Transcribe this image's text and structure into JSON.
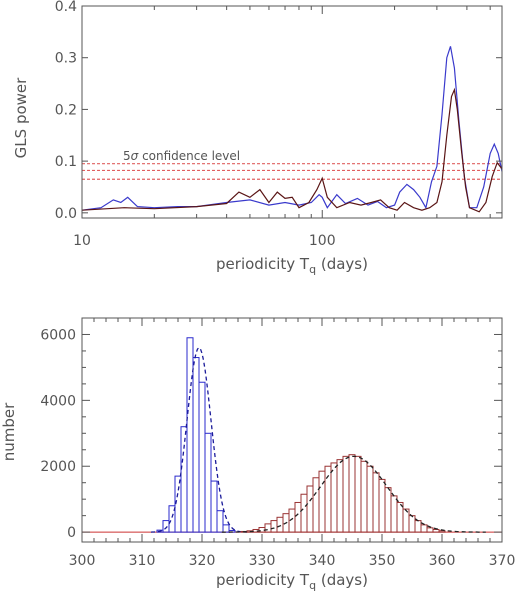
{
  "chart_data": [
    {
      "type": "line",
      "ylabel": "GLS power",
      "xlabel_prefix": "periodicity T",
      "xlabel_sub": "q",
      "xlabel_suffix": " (days)",
      "xscale": "log",
      "xlim": [
        10,
        560
      ],
      "ylim": [
        -0.01,
        0.4
      ],
      "x_ticks": [
        {
          "v": 10,
          "label": "10"
        },
        {
          "v": 100,
          "label": "100"
        }
      ],
      "y_ticks": [
        {
          "v": 0.0,
          "label": "0.0"
        },
        {
          "v": 0.1,
          "label": "0.1"
        },
        {
          "v": 0.2,
          "label": "0.2"
        },
        {
          "v": 0.3,
          "label": "0.3"
        },
        {
          "v": 0.4,
          "label": "0.4"
        }
      ],
      "annotation": {
        "prefix": "5",
        "symbol": "σ",
        "text": " confidence level",
        "color": "#e06060"
      },
      "confidence_levels": [
        0.065,
        0.082,
        0.095
      ],
      "series": [
        {
          "color": "#3a3acc",
          "points": [
            [
              10,
              0.005
            ],
            [
              12,
              0.01
            ],
            [
              13.5,
              0.025
            ],
            [
              14.5,
              0.02
            ],
            [
              15.5,
              0.03
            ],
            [
              17,
              0.012
            ],
            [
              20,
              0.01
            ],
            [
              25,
              0.012
            ],
            [
              30,
              0.012
            ],
            [
              40,
              0.02
            ],
            [
              50,
              0.025
            ],
            [
              60,
              0.015
            ],
            [
              70,
              0.02
            ],
            [
              80,
              0.015
            ],
            [
              90,
              0.02
            ],
            [
              97,
              0.035
            ],
            [
              100,
              0.03
            ],
            [
              105,
              0.01
            ],
            [
              115,
              0.035
            ],
            [
              125,
              0.018
            ],
            [
              140,
              0.028
            ],
            [
              155,
              0.015
            ],
            [
              170,
              0.022
            ],
            [
              185,
              0.01
            ],
            [
              200,
              0.015
            ],
            [
              210,
              0.04
            ],
            [
              225,
              0.055
            ],
            [
              240,
              0.045
            ],
            [
              255,
              0.03
            ],
            [
              270,
              0.01
            ],
            [
              285,
              0.06
            ],
            [
              300,
              0.09
            ],
            [
              315,
              0.19
            ],
            [
              330,
              0.3
            ],
            [
              342,
              0.322
            ],
            [
              355,
              0.28
            ],
            [
              370,
              0.18
            ],
            [
              390,
              0.07
            ],
            [
              410,
              0.01
            ],
            [
              440,
              0.01
            ],
            [
              470,
              0.05
            ],
            [
              500,
              0.115
            ],
            [
              520,
              0.133
            ],
            [
              540,
              0.115
            ],
            [
              560,
              0.08
            ]
          ]
        },
        {
          "color": "#5a1515",
          "points": [
            [
              10,
              0.005
            ],
            [
              15,
              0.01
            ],
            [
              20,
              0.008
            ],
            [
              30,
              0.012
            ],
            [
              40,
              0.018
            ],
            [
              45,
              0.04
            ],
            [
              50,
              0.03
            ],
            [
              55,
              0.045
            ],
            [
              60,
              0.02
            ],
            [
              65,
              0.04
            ],
            [
              70,
              0.028
            ],
            [
              75,
              0.03
            ],
            [
              80,
              0.01
            ],
            [
              88,
              0.02
            ],
            [
              95,
              0.045
            ],
            [
              100,
              0.067
            ],
            [
              105,
              0.03
            ],
            [
              115,
              0.01
            ],
            [
              130,
              0.02
            ],
            [
              145,
              0.015
            ],
            [
              160,
              0.02
            ],
            [
              175,
              0.025
            ],
            [
              190,
              0.01
            ],
            [
              205,
              0.005
            ],
            [
              220,
              0.02
            ],
            [
              240,
              0.01
            ],
            [
              260,
              0.005
            ],
            [
              280,
              0.01
            ],
            [
              300,
              0.02
            ],
            [
              315,
              0.06
            ],
            [
              330,
              0.15
            ],
            [
              345,
              0.225
            ],
            [
              355,
              0.238
            ],
            [
              365,
              0.2
            ],
            [
              380,
              0.12
            ],
            [
              395,
              0.05
            ],
            [
              410,
              0.01
            ],
            [
              450,
              0.002
            ],
            [
              480,
              0.02
            ],
            [
              510,
              0.07
            ],
            [
              535,
              0.097
            ],
            [
              560,
              0.085
            ]
          ]
        }
      ]
    },
    {
      "type": "bar",
      "ylabel": "number",
      "xlabel_prefix": "periodicity T",
      "xlabel_sub": "q",
      "xlabel_suffix": " (days)",
      "xlim": [
        300,
        370
      ],
      "ylim": [
        -300,
        6500
      ],
      "x_ticks": [
        {
          "v": 300,
          "label": "300"
        },
        {
          "v": 310,
          "label": "310"
        },
        {
          "v": 320,
          "label": "320"
        },
        {
          "v": 330,
          "label": "330"
        },
        {
          "v": 340,
          "label": "340"
        },
        {
          "v": 350,
          "label": "350"
        },
        {
          "v": 360,
          "label": "360"
        },
        {
          "v": 370,
          "label": "370"
        }
      ],
      "y_ticks": [
        {
          "v": 0,
          "label": "0"
        },
        {
          "v": 2000,
          "label": "2000"
        },
        {
          "v": 4000,
          "label": "4000"
        },
        {
          "v": 6000,
          "label": "6000"
        }
      ],
      "histograms": [
        {
          "color": "#2a2acc",
          "bin_width": 1,
          "bins": [
            [
              313,
              60
            ],
            [
              314,
              350
            ],
            [
              315,
              800
            ],
            [
              316,
              1700
            ],
            [
              317,
              3200
            ],
            [
              318,
              5900
            ],
            [
              319,
              5300
            ],
            [
              320,
              4550
            ],
            [
              321,
              3000
            ],
            [
              322,
              1550
            ],
            [
              323,
              650
            ],
            [
              324,
              220
            ],
            [
              325,
              50
            ]
          ],
          "fit": {
            "mean": 319.5,
            "sigma": 2.0,
            "amplitude": 5600
          }
        },
        {
          "color": "#9a3333",
          "bin_width": 1,
          "bins": [
            [
              327,
              20
            ],
            [
              328,
              40
            ],
            [
              329,
              80
            ],
            [
              330,
              140
            ],
            [
              331,
              250
            ],
            [
              332,
              350
            ],
            [
              333,
              450
            ],
            [
              334,
              560
            ],
            [
              335,
              700
            ],
            [
              336,
              900
            ],
            [
              337,
              1150
            ],
            [
              338,
              1400
            ],
            [
              339,
              1650
            ],
            [
              340,
              1850
            ],
            [
              341,
              2000
            ],
            [
              342,
              2100
            ],
            [
              343,
              2200
            ],
            [
              344,
              2300
            ],
            [
              345,
              2350
            ],
            [
              346,
              2300
            ],
            [
              347,
              2150
            ],
            [
              348,
              2000
            ],
            [
              349,
              1800
            ],
            [
              350,
              1600
            ],
            [
              351,
              1350
            ],
            [
              352,
              1100
            ],
            [
              353,
              900
            ],
            [
              354,
              700
            ],
            [
              355,
              500
            ],
            [
              356,
              350
            ],
            [
              357,
              220
            ],
            [
              358,
              130
            ],
            [
              359,
              80
            ],
            [
              360,
              40
            ]
          ],
          "fit": {
            "mean": 345.3,
            "sigma": 5.5,
            "amplitude": 2300
          }
        }
      ]
    }
  ]
}
